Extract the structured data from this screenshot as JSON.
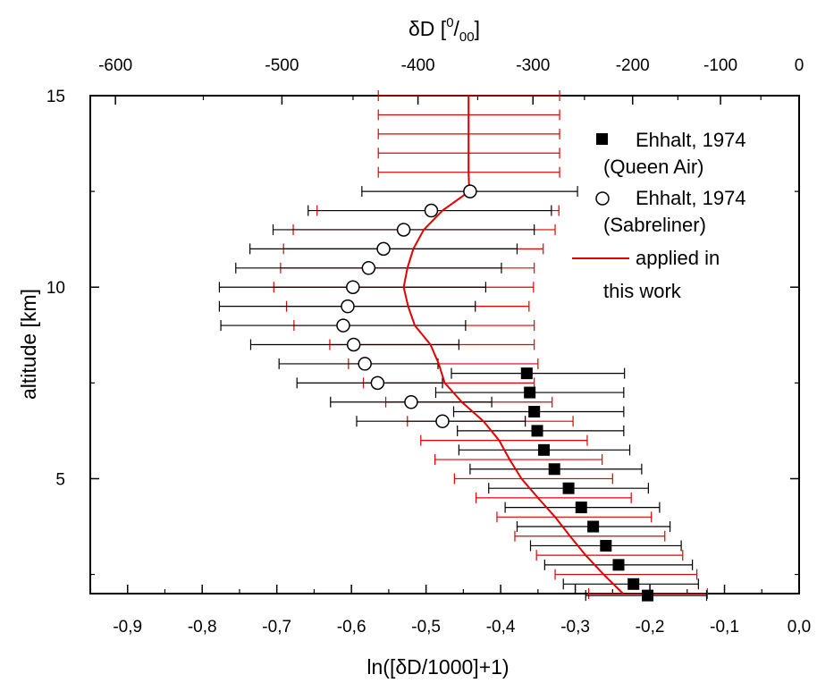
{
  "chart_data": {
    "type": "scatter",
    "xlabel": "ln([δD/1000]+1)",
    "ylabel": "altitude [km]",
    "xlim": [
      -0.95,
      0.0
    ],
    "ylim": [
      2.0,
      15.0
    ],
    "x_ticks": [
      -0.9,
      -0.8,
      -0.7,
      -0.6,
      -0.5,
      -0.4,
      -0.3,
      -0.2,
      -0.1,
      0.0
    ],
    "x_tick_labels": [
      "-0,9",
      "-0,8",
      "-0,7",
      "-0,6",
      "-0,5",
      "-0,4",
      "-0,3",
      "-0,2",
      "-0,1",
      "0,0"
    ],
    "y_ticks": [
      5,
      10,
      15
    ],
    "y_tick_labels": [
      "5",
      "10",
      "15"
    ],
    "top_axis": {
      "label_main": "δD [",
      "label_sup": "0",
      "label_mid": "/",
      "label_sub": "00",
      "label_end": "]",
      "ticks": [
        -600,
        -500,
        -400,
        -300,
        -200,
        -100,
        0
      ],
      "tick_labels": [
        "-600",
        "-500",
        "-400",
        "-300",
        "-200",
        "-100",
        "0"
      ]
    },
    "legend_position": "top-right",
    "legend": [
      {
        "marker": "square-filled",
        "lines": [
          "Ehhalt, 1974",
          "(Queen Air)"
        ]
      },
      {
        "marker": "circle-open",
        "lines": [
          "Ehhalt, 1974",
          "(Sabreliner)"
        ]
      },
      {
        "marker": "line",
        "lines": [
          "applied in",
          "this work"
        ]
      }
    ],
    "series": [
      {
        "name": "Ehhalt, 1974 (Queen Air)",
        "color": "#000000",
        "points": [
          {
            "x": -0.365,
            "y": 7.75,
            "err_lo": -0.466,
            "err_hi": -0.234
          },
          {
            "x": -0.361,
            "y": 7.25,
            "err_lo": -0.487,
            "err_hi": -0.235
          },
          {
            "x": -0.355,
            "y": 6.75,
            "err_lo": -0.463,
            "err_hi": -0.235
          },
          {
            "x": -0.351,
            "y": 6.25,
            "err_lo": -0.458,
            "err_hi": -0.235
          },
          {
            "x": -0.342,
            "y": 5.75,
            "err_lo": -0.456,
            "err_hi": -0.227
          },
          {
            "x": -0.328,
            "y": 5.25,
            "err_lo": -0.441,
            "err_hi": -0.211
          },
          {
            "x": -0.309,
            "y": 4.75,
            "err_lo": -0.416,
            "err_hi": -0.202
          },
          {
            "x": -0.292,
            "y": 4.25,
            "err_lo": -0.394,
            "err_hi": -0.187
          },
          {
            "x": -0.276,
            "y": 3.75,
            "err_lo": -0.378,
            "err_hi": -0.173
          },
          {
            "x": -0.259,
            "y": 3.25,
            "err_lo": -0.36,
            "err_hi": -0.158
          },
          {
            "x": -0.242,
            "y": 2.75,
            "err_lo": -0.341,
            "err_hi": -0.143
          },
          {
            "x": -0.222,
            "y": 2.25,
            "err_lo": -0.316,
            "err_hi": -0.135
          },
          {
            "x": -0.203,
            "y": 1.95,
            "err_lo": -0.286,
            "err_hi": -0.124
          }
        ]
      },
      {
        "name": "Ehhalt, 1974 (Sabreliner)",
        "color": "#000000",
        "points": [
          {
            "x": -0.441,
            "y": 12.5,
            "err_lo": -0.586,
            "err_hi": -0.297
          },
          {
            "x": -0.493,
            "y": 12.0,
            "err_lo": -0.658,
            "err_hi": -0.332
          },
          {
            "x": -0.53,
            "y": 11.5,
            "err_lo": -0.705,
            "err_hi": -0.355
          },
          {
            "x": -0.557,
            "y": 11.0,
            "err_lo": -0.736,
            "err_hi": -0.378
          },
          {
            "x": -0.577,
            "y": 10.5,
            "err_lo": -0.755,
            "err_hi": -0.399
          },
          {
            "x": -0.598,
            "y": 10.0,
            "err_lo": -0.777,
            "err_hi": -0.42
          },
          {
            "x": -0.605,
            "y": 9.5,
            "err_lo": -0.777,
            "err_hi": -0.434
          },
          {
            "x": -0.611,
            "y": 9.0,
            "err_lo": -0.775,
            "err_hi": -0.447
          },
          {
            "x": -0.597,
            "y": 8.5,
            "err_lo": -0.735,
            "err_hi": -0.456
          },
          {
            "x": -0.582,
            "y": 8.0,
            "err_lo": -0.697,
            "err_hi": -0.484
          },
          {
            "x": -0.565,
            "y": 7.5,
            "err_lo": -0.673,
            "err_hi": -0.478
          },
          {
            "x": -0.52,
            "y": 7.0,
            "err_lo": -0.628,
            "err_hi": -0.412
          },
          {
            "x": -0.478,
            "y": 6.5,
            "err_lo": -0.593,
            "err_hi": -0.367
          }
        ]
      },
      {
        "name": "applied in this work",
        "color": "#e00000",
        "line": [
          {
            "x": -0.443,
            "y": 15.0
          },
          {
            "x": -0.443,
            "y": 14.0
          },
          {
            "x": -0.443,
            "y": 13.0
          },
          {
            "x": -0.442,
            "y": 12.5
          },
          {
            "x": -0.478,
            "y": 12.0
          },
          {
            "x": -0.503,
            "y": 11.5
          },
          {
            "x": -0.517,
            "y": 11.0
          },
          {
            "x": -0.525,
            "y": 10.5
          },
          {
            "x": -0.53,
            "y": 10.0
          },
          {
            "x": -0.524,
            "y": 9.5
          },
          {
            "x": -0.515,
            "y": 9.0
          },
          {
            "x": -0.494,
            "y": 8.5
          },
          {
            "x": -0.483,
            "y": 8.0
          },
          {
            "x": -0.475,
            "y": 7.5
          },
          {
            "x": -0.452,
            "y": 7.0
          },
          {
            "x": -0.423,
            "y": 6.5
          },
          {
            "x": -0.402,
            "y": 6.0
          },
          {
            "x": -0.388,
            "y": 5.5
          },
          {
            "x": -0.372,
            "y": 5.0
          },
          {
            "x": -0.35,
            "y": 4.5
          },
          {
            "x": -0.327,
            "y": 4.0
          },
          {
            "x": -0.307,
            "y": 3.5
          },
          {
            "x": -0.286,
            "y": 3.0
          },
          {
            "x": -0.262,
            "y": 2.5
          },
          {
            "x": -0.236,
            "y": 2.0
          }
        ],
        "error_bars": [
          {
            "y": 15.0,
            "lo": -0.564,
            "hi": -0.321
          },
          {
            "y": 14.5,
            "lo": -0.564,
            "hi": -0.321
          },
          {
            "y": 14.0,
            "lo": -0.564,
            "hi": -0.321
          },
          {
            "y": 13.5,
            "lo": -0.564,
            "hi": -0.321
          },
          {
            "y": 13.0,
            "lo": -0.564,
            "hi": -0.321
          },
          {
            "y": 12.0,
            "lo": -0.646,
            "hi": -0.322
          },
          {
            "y": 11.5,
            "lo": -0.678,
            "hi": -0.327
          },
          {
            "y": 11.0,
            "lo": -0.691,
            "hi": -0.343
          },
          {
            "y": 10.5,
            "lo": -0.695,
            "hi": -0.355
          },
          {
            "y": 10.0,
            "lo": -0.704,
            "hi": -0.356
          },
          {
            "y": 9.5,
            "lo": -0.687,
            "hi": -0.362
          },
          {
            "y": 9.0,
            "lo": -0.677,
            "hi": -0.355
          },
          {
            "y": 8.5,
            "lo": -0.629,
            "hi": -0.355
          },
          {
            "y": 8.0,
            "lo": -0.604,
            "hi": -0.35
          },
          {
            "y": 7.5,
            "lo": -0.584,
            "hi": -0.355
          },
          {
            "y": 7.0,
            "lo": -0.554,
            "hi": -0.331
          },
          {
            "y": 6.5,
            "lo": -0.525,
            "hi": -0.303
          },
          {
            "y": 6.0,
            "lo": -0.507,
            "hi": -0.284
          },
          {
            "y": 5.5,
            "lo": -0.488,
            "hi": -0.264
          },
          {
            "y": 5.0,
            "lo": -0.462,
            "hi": -0.25
          },
          {
            "y": 4.5,
            "lo": -0.433,
            "hi": -0.225
          },
          {
            "y": 4.0,
            "lo": -0.405,
            "hi": -0.198
          },
          {
            "y": 3.5,
            "lo": -0.381,
            "hi": -0.18
          },
          {
            "y": 3.0,
            "lo": -0.352,
            "hi": -0.156
          },
          {
            "y": 2.5,
            "lo": -0.327,
            "hi": -0.137
          },
          {
            "y": 2.0,
            "lo": -0.282,
            "hi": -0.123
          }
        ]
      }
    ]
  }
}
